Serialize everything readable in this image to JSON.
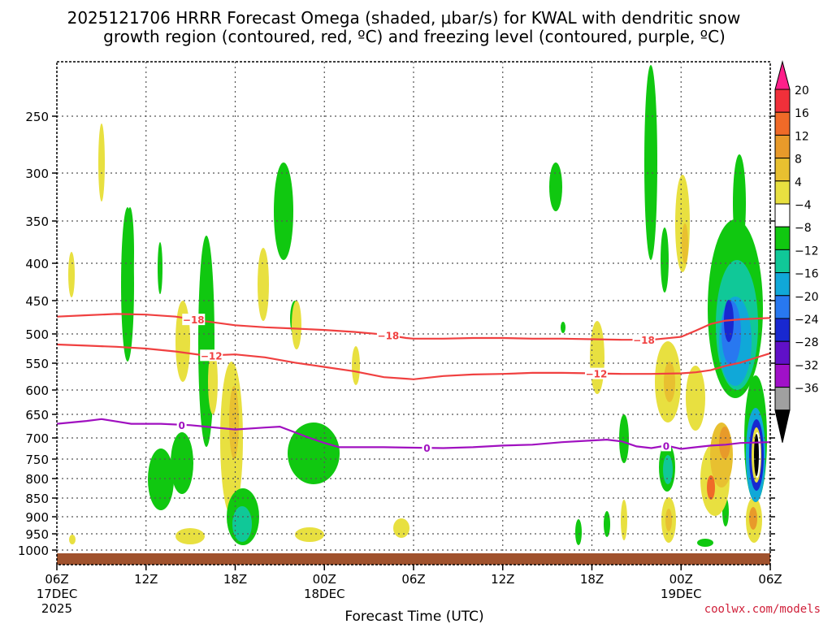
{
  "chart_data": {
    "type": "contour",
    "title_lines": [
      "2025121706 HRRR Forecast Omega (shaded, μbar/s) for KWAL with dendritic snow",
      "growth region (contoured, red, ºC) and freezing level (contoured, purple, ºC)"
    ],
    "xlabel": "Forecast Time (UTC)",
    "x_ticks": [
      {
        "hour": 0,
        "label": "06Z",
        "sub1": "17DEC",
        "sub2": "2025"
      },
      {
        "hour": 6,
        "label": "12Z",
        "sub1": "",
        "sub2": ""
      },
      {
        "hour": 12,
        "label": "18Z",
        "sub1": "",
        "sub2": ""
      },
      {
        "hour": 18,
        "label": "00Z",
        "sub1": "18DEC",
        "sub2": ""
      },
      {
        "hour": 24,
        "label": "06Z",
        "sub1": "",
        "sub2": ""
      },
      {
        "hour": 30,
        "label": "12Z",
        "sub1": "",
        "sub2": ""
      },
      {
        "hour": 36,
        "label": "18Z",
        "sub1": "",
        "sub2": ""
      },
      {
        "hour": 42,
        "label": "00Z",
        "sub1": "19DEC",
        "sub2": ""
      },
      {
        "hour": 48,
        "label": "06Z",
        "sub1": "",
        "sub2": ""
      }
    ],
    "xlim": [
      0,
      48
    ],
    "y_ticks": [
      "250",
      "300",
      "350",
      "400",
      "450",
      "500",
      "550",
      "600",
      "650",
      "700",
      "750",
      "800",
      "850",
      "900",
      "950",
      "1000"
    ],
    "y_values": [
      250,
      300,
      350,
      400,
      450,
      500,
      550,
      600,
      650,
      700,
      750,
      800,
      850,
      900,
      950,
      1000
    ],
    "ylim": [
      1020,
      195
    ],
    "grid": true,
    "colorbar": {
      "labels": [
        "20",
        "16",
        "12",
        "8",
        "4",
        "−4",
        "−8",
        "−12",
        "−16",
        "−20",
        "−24",
        "−28",
        "−32",
        "−36"
      ],
      "colors": [
        "#ff1f8a",
        "#f0303a",
        "#f06a28",
        "#e89a2a",
        "#e8c030",
        "#e8e040",
        "#ffffff",
        "#10c810",
        "#10c898",
        "#10a8d8",
        "#2878f0",
        "#1828d0",
        "#6010c8",
        "#a010c8",
        "#a0a0a0",
        "#000000"
      ]
    },
    "colors": {
      "omega_up_weak": "#10c810",
      "omega_up_mod": "#10c898",
      "omega_up_strong": "#10a8d8",
      "omega_up_vstrong": "#2878f0",
      "omega_up_max": "#1828d0",
      "omega_down_weak": "#e8e040",
      "omega_down_mod": "#e8c030",
      "omega_down_strong": "#e89a2a",
      "omega_down_vstrong": "#f06a28",
      "dgz_line": "#f04040",
      "freezing_line": "#a010c0",
      "ground": "#a0522d"
    },
    "contours": [
      {
        "name": "-18",
        "color": "dgz_line",
        "label": "−18",
        "points": [
          [
            0,
            474
          ],
          [
            2,
            472
          ],
          [
            4,
            470
          ],
          [
            6,
            471
          ],
          [
            8,
            474
          ],
          [
            10,
            481
          ],
          [
            12,
            487
          ],
          [
            14,
            490
          ],
          [
            16,
            492
          ],
          [
            18,
            494
          ],
          [
            20,
            497
          ],
          [
            22,
            501
          ],
          [
            23.5,
            507
          ],
          [
            24,
            508
          ],
          [
            26,
            508
          ],
          [
            28,
            507
          ],
          [
            30,
            507
          ],
          [
            32,
            508
          ],
          [
            34,
            508
          ],
          [
            36,
            509
          ],
          [
            38,
            510
          ],
          [
            40,
            510
          ],
          [
            42,
            505
          ],
          [
            43,
            495
          ],
          [
            44,
            485
          ],
          [
            45,
            480
          ],
          [
            46,
            478
          ],
          [
            48,
            476
          ]
        ],
        "label_hours": [
          9.2,
          22.3,
          39.5
        ]
      },
      {
        "name": "-12",
        "color": "dgz_line",
        "label": "−12",
        "points": [
          [
            0,
            518
          ],
          [
            2,
            520
          ],
          [
            4,
            522
          ],
          [
            6,
            525
          ],
          [
            8,
            530
          ],
          [
            10,
            537
          ],
          [
            12,
            535
          ],
          [
            14,
            540
          ],
          [
            16,
            549
          ],
          [
            18,
            557
          ],
          [
            20,
            565
          ],
          [
            22,
            576
          ],
          [
            23.5,
            579
          ],
          [
            24,
            580
          ],
          [
            26,
            574
          ],
          [
            28,
            571
          ],
          [
            30,
            570
          ],
          [
            32,
            568
          ],
          [
            34,
            568
          ],
          [
            36,
            569
          ],
          [
            38,
            570
          ],
          [
            40,
            570
          ],
          [
            42,
            569
          ],
          [
            43,
            567
          ],
          [
            44,
            563
          ],
          [
            45,
            555
          ],
          [
            46,
            549
          ],
          [
            47,
            541
          ],
          [
            48,
            533
          ]
        ],
        "label_hours": [
          10.4,
          36.3
        ]
      },
      {
        "name": "0",
        "color": "freezing_line",
        "label": "0",
        "points": [
          [
            0,
            670
          ],
          [
            2,
            664
          ],
          [
            3,
            660
          ],
          [
            4,
            665
          ],
          [
            5,
            670
          ],
          [
            7,
            670
          ],
          [
            9,
            673
          ],
          [
            12,
            682
          ],
          [
            14,
            678
          ],
          [
            15,
            676
          ],
          [
            16,
            688
          ],
          [
            17,
            700
          ],
          [
            18,
            712
          ],
          [
            19,
            722
          ],
          [
            20,
            722
          ],
          [
            22,
            722
          ],
          [
            24,
            723
          ],
          [
            26,
            724
          ],
          [
            28,
            722
          ],
          [
            30,
            718
          ],
          [
            32,
            716
          ],
          [
            34,
            710
          ],
          [
            36,
            706
          ],
          [
            37,
            704
          ],
          [
            38,
            708
          ],
          [
            39,
            720
          ],
          [
            40,
            724
          ],
          [
            41,
            718
          ],
          [
            42,
            726
          ],
          [
            43,
            722
          ],
          [
            44,
            718
          ],
          [
            45,
            716
          ],
          [
            46,
            712
          ],
          [
            48,
            710
          ]
        ],
        "label_hours": [
          8.4,
          24.9,
          41.0
        ]
      }
    ]
  },
  "credit": "coolwx.com/models"
}
